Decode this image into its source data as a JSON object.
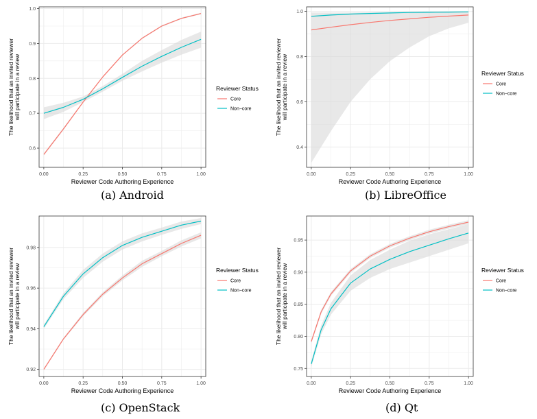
{
  "captions": {
    "a": "(a) Android",
    "b": "(b) LibreOffice",
    "c": "(c) OpenStack",
    "d": "(d) Qt"
  },
  "colors": {
    "core": "#F8766D",
    "noncore": "#00BFC4",
    "ribbon": "#D9D9D9",
    "grid": "#EBEBEB"
  },
  "chart_data": [
    {
      "id": "android",
      "type": "line",
      "xlabel": "Reviewer Code Authoring Experience",
      "ylabel": [
        "The likelihood that an invited reviewer",
        "will participate in a review"
      ],
      "xlim": [
        -0.03,
        1.03
      ],
      "ylim": [
        0.545,
        1.005
      ],
      "xticks": [
        0,
        0.25,
        0.5,
        0.75,
        1
      ],
      "xtick_labels": [
        "0.00",
        "0.25",
        "0.50",
        "0.75",
        "1.00"
      ],
      "yticks": [
        0.6,
        0.7,
        0.8,
        0.9,
        1.0
      ],
      "ytick_labels": [
        "0.6",
        "0.7",
        "0.8",
        "0.9",
        "1.0"
      ],
      "legend": {
        "title": "Reviewer Status",
        "labels": [
          "Core",
          "Non−core"
        ],
        "position": "right"
      },
      "x": [
        0,
        0.125,
        0.25,
        0.375,
        0.5,
        0.625,
        0.75,
        0.875,
        1
      ],
      "series": [
        {
          "name": "Core",
          "values": [
            0.582,
            0.655,
            0.732,
            0.804,
            0.867,
            0.915,
            0.95,
            0.972,
            0.986
          ],
          "lower": [
            0.579,
            0.652,
            0.73,
            0.802,
            0.865,
            0.913,
            0.948,
            0.97,
            0.984
          ],
          "upper": [
            0.585,
            0.658,
            0.734,
            0.806,
            0.869,
            0.917,
            0.952,
            0.974,
            0.988
          ]
        },
        {
          "name": "Non−core",
          "values": [
            0.7,
            0.717,
            0.74,
            0.77,
            0.803,
            0.835,
            0.863,
            0.889,
            0.912
          ],
          "lower": [
            0.683,
            0.704,
            0.732,
            0.762,
            0.793,
            0.82,
            0.845,
            0.868,
            0.888
          ],
          "upper": [
            0.717,
            0.73,
            0.748,
            0.778,
            0.813,
            0.85,
            0.881,
            0.91,
            0.934
          ]
        }
      ]
    },
    {
      "id": "libreoffice",
      "type": "line",
      "xlabel": "Reviewer Code Authoring Experience",
      "ylabel": [
        "The likelihood that an invited reviewer",
        "will participate in a review"
      ],
      "xlim": [
        -0.03,
        1.03
      ],
      "ylim": [
        0.31,
        1.02
      ],
      "xticks": [
        0,
        0.25,
        0.5,
        0.75,
        1
      ],
      "xtick_labels": [
        "0.00",
        "0.25",
        "0.50",
        "0.75",
        "1.00"
      ],
      "yticks": [
        0.4,
        0.6,
        0.8,
        1.0
      ],
      "ytick_labels": [
        "0.4",
        "0.6",
        "0.8",
        "1.0"
      ],
      "legend": {
        "title": "Reviewer Status",
        "labels": [
          "Core",
          "Non−core"
        ],
        "position": "right"
      },
      "x": [
        0,
        0.125,
        0.25,
        0.375,
        0.5,
        0.625,
        0.75,
        0.875,
        1
      ],
      "series": [
        {
          "name": "Core",
          "values": [
            0.918,
            0.93,
            0.941,
            0.951,
            0.96,
            0.967,
            0.974,
            0.979,
            0.984
          ],
          "lower": [
            0.33,
            0.47,
            0.6,
            0.7,
            0.78,
            0.84,
            0.89,
            0.925,
            0.95
          ],
          "upper": [
            0.995,
            0.995,
            0.995,
            0.996,
            0.996,
            0.997,
            0.997,
            0.998,
            0.998
          ]
        },
        {
          "name": "Non−core",
          "values": [
            0.978,
            0.984,
            0.988,
            0.991,
            0.993,
            0.995,
            0.996,
            0.997,
            0.998
          ],
          "lower": [
            0.975,
            0.981,
            0.985,
            0.988,
            0.99,
            0.992,
            0.993,
            0.994,
            0.995
          ],
          "upper": [
            0.981,
            0.987,
            0.991,
            0.994,
            0.996,
            0.998,
            0.999,
            0.999,
            1.0
          ]
        }
      ]
    },
    {
      "id": "openstack",
      "type": "line",
      "xlabel": "Reviewer Code Authoring Experience",
      "ylabel": [
        "The likelihood that an invited reviewer",
        "will participate in a review"
      ],
      "xlim": [
        -0.03,
        1.03
      ],
      "ylim": [
        0.9165,
        0.9955
      ],
      "xticks": [
        0,
        0.25,
        0.5,
        0.75,
        1
      ],
      "xtick_labels": [
        "0.00",
        "0.25",
        "0.50",
        "0.75",
        "1.00"
      ],
      "yticks": [
        0.92,
        0.94,
        0.96,
        0.98
      ],
      "ytick_labels": [
        "0.92",
        "0.94",
        "0.96",
        "0.98"
      ],
      "legend": {
        "title": "Reviewer Status",
        "labels": [
          "Core",
          "Non−core"
        ],
        "position": "right"
      },
      "x": [
        0,
        0.125,
        0.25,
        0.375,
        0.5,
        0.625,
        0.75,
        0.875,
        1
      ],
      "series": [
        {
          "name": "Core",
          "values": [
            0.92,
            0.935,
            0.947,
            0.957,
            0.965,
            0.972,
            0.977,
            0.982,
            0.986
          ],
          "lower": [
            0.9195,
            0.9345,
            0.9462,
            0.956,
            0.9638,
            0.9705,
            0.9757,
            0.9805,
            0.9845
          ],
          "upper": [
            0.9205,
            0.9355,
            0.9478,
            0.958,
            0.9662,
            0.9735,
            0.9783,
            0.9835,
            0.9875
          ]
        },
        {
          "name": "Non−core",
          "values": [
            0.941,
            0.956,
            0.967,
            0.975,
            0.981,
            0.985,
            0.988,
            0.991,
            0.993
          ],
          "lower": [
            0.94,
            0.9545,
            0.965,
            0.973,
            0.979,
            0.983,
            0.9862,
            0.9892,
            0.9915
          ],
          "upper": [
            0.942,
            0.9575,
            0.969,
            0.977,
            0.983,
            0.987,
            0.9898,
            0.9928,
            0.9945
          ]
        }
      ]
    },
    {
      "id": "qt",
      "type": "line",
      "xlabel": "Reviewer Code Authoring Experience",
      "ylabel": [
        "The likelihood that an invited reviewer",
        "will participate in a review"
      ],
      "xlim": [
        -0.03,
        1.03
      ],
      "ylim": [
        0.7375,
        0.9875
      ],
      "xticks": [
        0,
        0.25,
        0.5,
        0.75,
        1
      ],
      "xtick_labels": [
        "0.00",
        "0.25",
        "0.50",
        "0.75",
        "1.00"
      ],
      "yticks": [
        0.75,
        0.8,
        0.85,
        0.9,
        0.95
      ],
      "ytick_labels": [
        "0.75",
        "0.80",
        "0.85",
        "0.90",
        "0.95"
      ],
      "legend": {
        "title": "Reviewer Status",
        "labels": [
          "Core",
          "Non−core"
        ],
        "position": "right"
      },
      "x": [
        0,
        0.0625,
        0.125,
        0.25,
        0.375,
        0.5,
        0.625,
        0.75,
        0.875,
        1
      ],
      "series": [
        {
          "name": "Core",
          "values": [
            0.792,
            0.838,
            0.866,
            0.902,
            0.925,
            0.941,
            0.953,
            0.963,
            0.971,
            0.978
          ],
          "lower": [
            0.789,
            0.835,
            0.863,
            0.899,
            0.922,
            0.938,
            0.95,
            0.96,
            0.968,
            0.975
          ],
          "upper": [
            0.795,
            0.841,
            0.869,
            0.905,
            0.928,
            0.944,
            0.956,
            0.966,
            0.974,
            0.981
          ]
        },
        {
          "name": "Non−core",
          "values": [
            0.757,
            0.81,
            0.843,
            0.883,
            0.905,
            0.92,
            0.932,
            0.942,
            0.952,
            0.961
          ],
          "lower": [
            0.752,
            0.803,
            0.834,
            0.871,
            0.891,
            0.905,
            0.915,
            0.925,
            0.935,
            0.945
          ],
          "upper": [
            0.762,
            0.817,
            0.852,
            0.895,
            0.919,
            0.935,
            0.949,
            0.959,
            0.967,
            0.975
          ]
        }
      ]
    }
  ]
}
